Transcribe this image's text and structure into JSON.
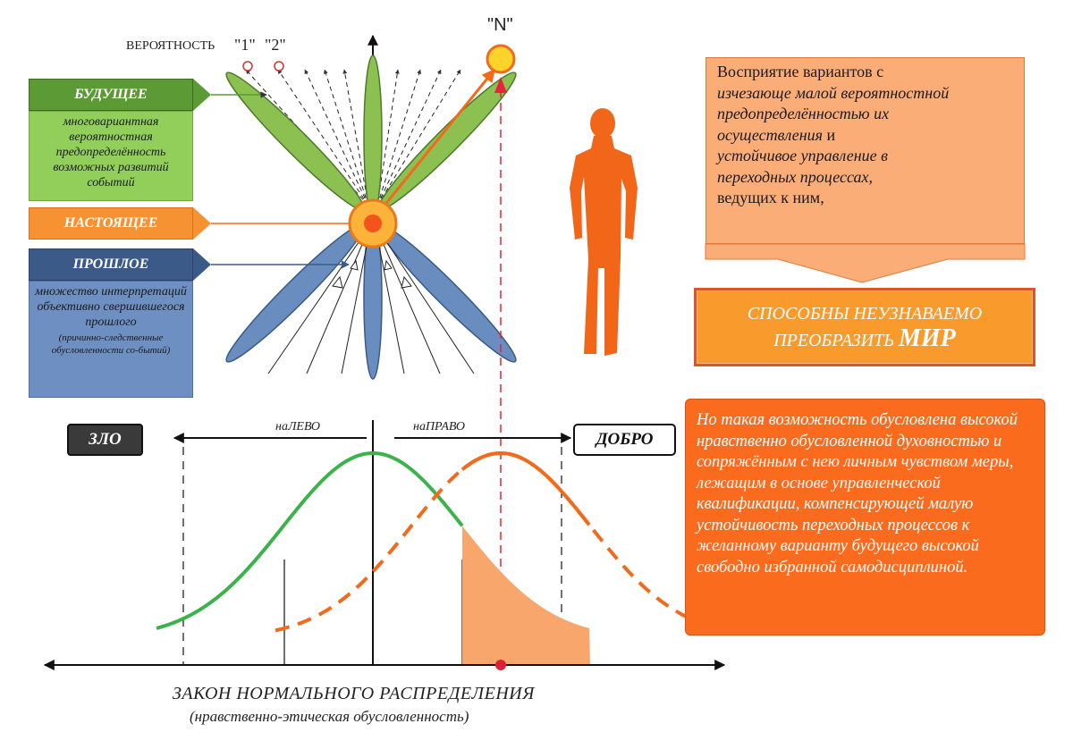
{
  "probability": {
    "label": "ВЕРОЯТНОСТЬ",
    "one": "\"1\"",
    "two": "\"2\"",
    "n": "\"N\""
  },
  "future": {
    "label": "БУДУЩЕЕ",
    "desc": "многовариантная вероятностная предопределённость возможных развитий событий",
    "color": "#5b9a34",
    "desc_color": "#92cf5a"
  },
  "present": {
    "label": "НАСТОЯЩЕЕ",
    "color": "#f79232"
  },
  "past": {
    "label": "ПРОШЛОЕ",
    "desc": "множество интерпретаций объективно свершившегося прошлого",
    "desc_small": "(причинно-следственные обусловленности со-бытий)",
    "color": "#3c5a88",
    "desc_color": "#6d8fc2"
  },
  "perception": {
    "line1": "Восприятие вариантов с",
    "line2": "изчезающе малой вероятностной",
    "line3": "предопределённостью их",
    "line4a": "осуществления",
    "line4b": " и",
    "line5": "устойчивое управление в",
    "line6": "переходных процессах,",
    "line7": "ведущих к ним,"
  },
  "transform": {
    "line1": "СПОСОБНЫ НЕУЗНАВАЕМО",
    "line2": "ПРЕОБРАЗИТЬ ",
    "big": "МИР"
  },
  "condition": {
    "text": "Но такая возможность обусловлена высокой нравственно обусловленной духовностью и сопряжённым с нею личным чувством меры, лежащим в основе управленческой квалификации, компенсирующей малую устойчивость переходных процессов к желанному варианту будущего высокой свободно избранной самодисциплиной."
  },
  "direction": {
    "left": "наЛЕВО",
    "right": "наПРАВО",
    "evil": "ЗЛО",
    "good": "ДОБРО"
  },
  "footer": {
    "title": "ЗАКОН  НОРМАЛЬНОГО  РАСПРЕДЕЛЕНИЯ",
    "subtitle": "(нравственно-этическая обусловленность)"
  },
  "colors": {
    "green": "#4caf50",
    "orange": "#f26a1b",
    "blue": "#6a8dc0",
    "red": "#e8243c",
    "shade": "#f9a66c"
  }
}
